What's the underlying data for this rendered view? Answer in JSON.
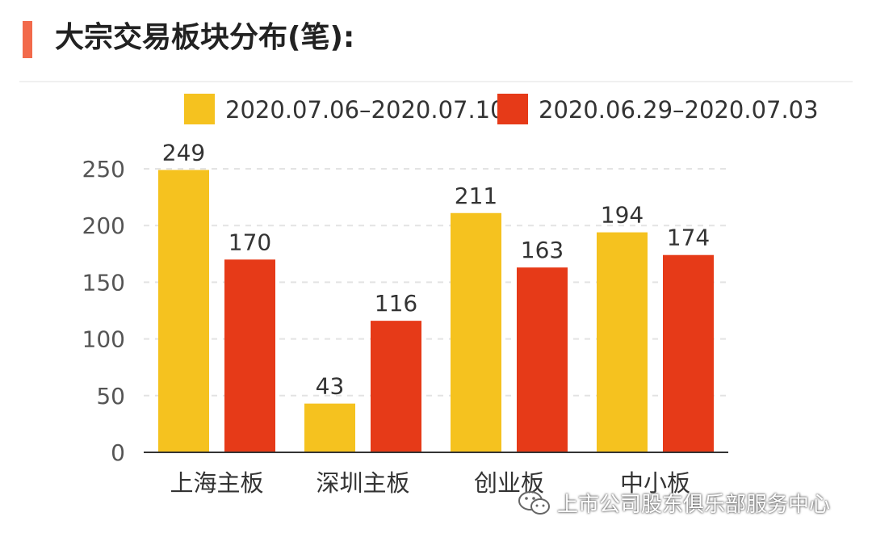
{
  "page": {
    "title": "大宗交易板块分布(笔):"
  },
  "watermark": {
    "text": "上市公司股东俱乐部服务中心",
    "icon": "wechat-icon"
  },
  "chart_data": {
    "type": "bar",
    "title": "大宗交易板块分布(笔):",
    "categories": [
      "上海主板",
      "深圳主板",
      "创业板",
      "中小板"
    ],
    "series": [
      {
        "name": "2020.07.06–2020.07.10",
        "color": "#f5c21f",
        "values": [
          249,
          43,
          211,
          194
        ]
      },
      {
        "name": "2020.06.29–2020.07.03",
        "color": "#e63a18",
        "values": [
          170,
          116,
          163,
          174
        ]
      }
    ],
    "ylim": [
      0,
      250
    ],
    "yticks": [
      0,
      50,
      100,
      150,
      200,
      250
    ],
    "grid": true,
    "legend": "top",
    "data_labels": true
  }
}
